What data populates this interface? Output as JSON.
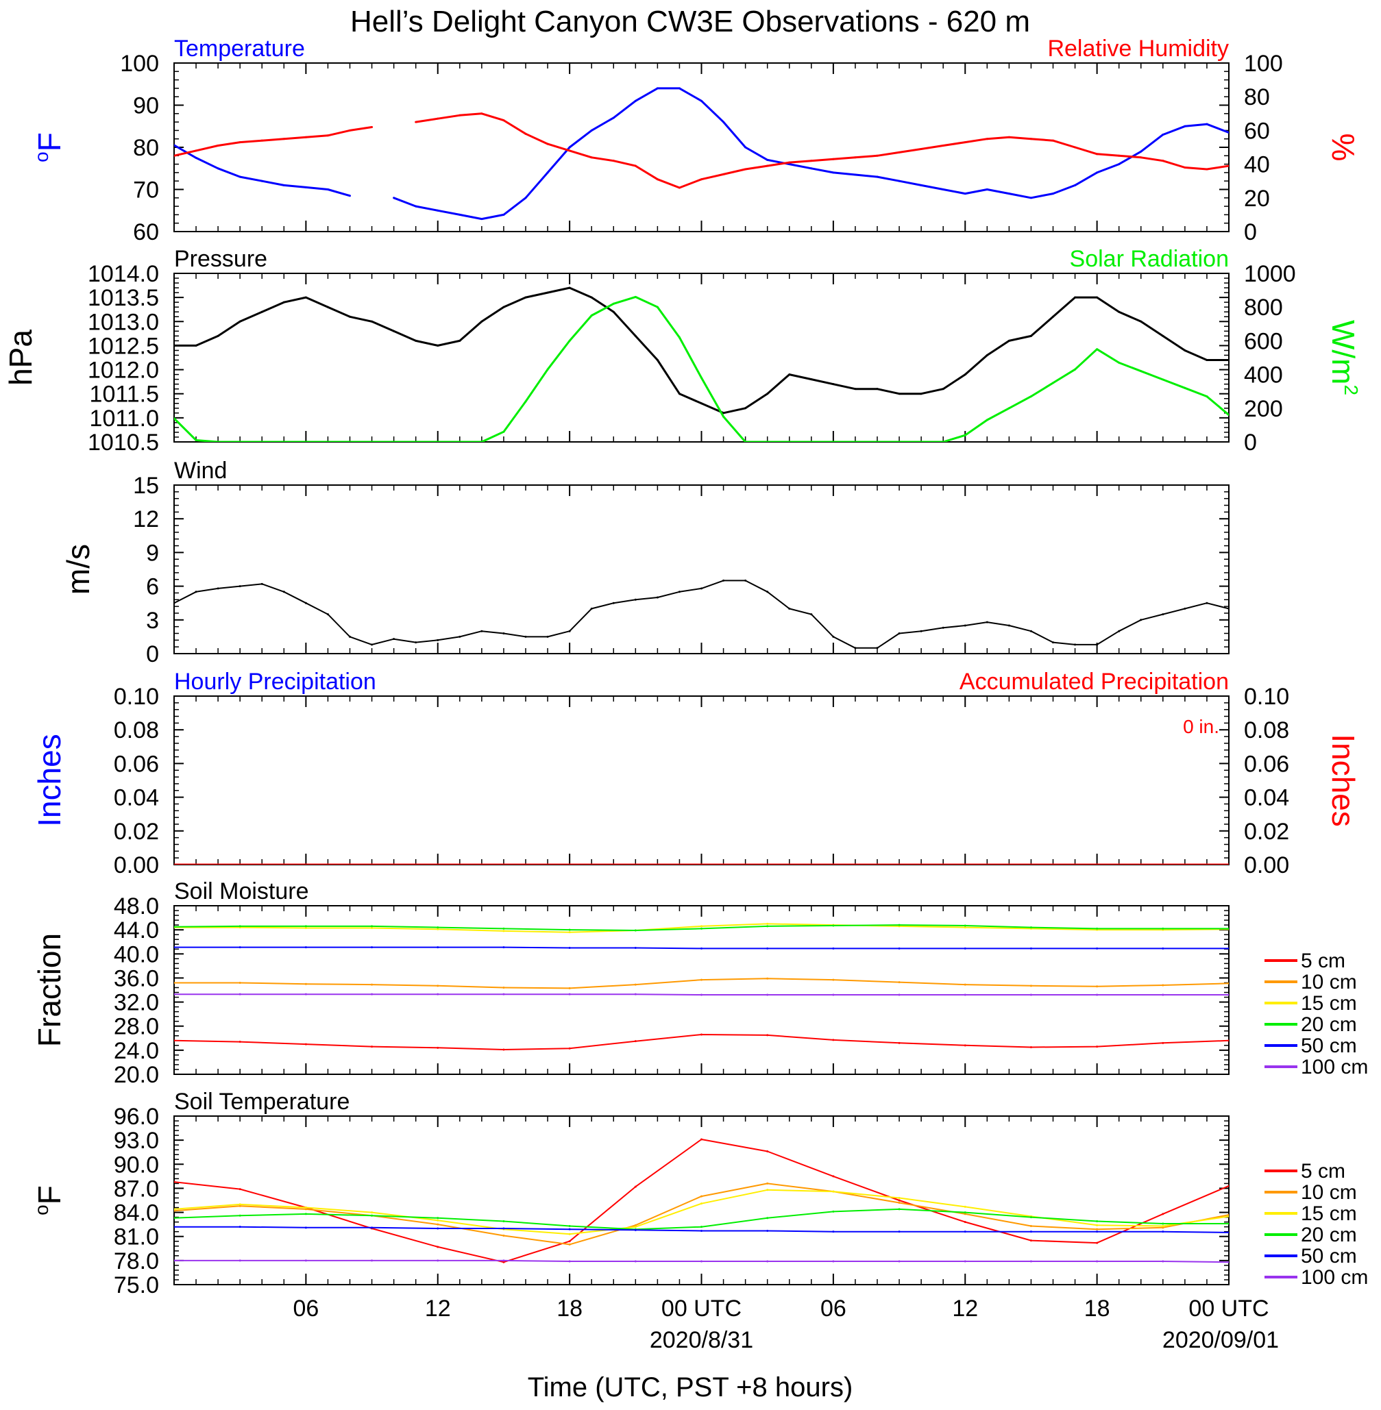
{
  "title": "Hell’s Delight Canyon CW3E Observations - 620 m",
  "xaxis": {
    "label": "Time (UTC, PST +8 hours)",
    "ticks": [
      "06",
      "12",
      "18",
      "00 UTC",
      "06",
      "12",
      "18",
      "00 UTC"
    ],
    "dates": [
      "2020/8/31",
      "2020/09/01"
    ]
  },
  "colors": {
    "blue": "#0000ff",
    "red": "#ff0000",
    "green": "#00ee00",
    "black": "#000000",
    "orange": "#ff9900",
    "yellow": "#ffee00",
    "purple": "#9933ee"
  },
  "chart_data": [
    {
      "type": "line",
      "panel": "temperature_rh",
      "left_title": "Temperature",
      "right_title": "Relative Humidity",
      "ylabel_left_prefix": "o",
      "ylabel_left_main": "F",
      "ylabel_right": "%",
      "ylim_left": [
        60,
        100
      ],
      "yticks_left": [
        "100",
        "90",
        "80",
        "70",
        "60"
      ],
      "ylim_right": [
        0,
        100
      ],
      "yticks_right": [
        "100",
        "80",
        "60",
        "40",
        "20",
        "0"
      ],
      "x_hours": [
        0,
        1,
        2,
        3,
        4,
        5,
        6,
        7,
        8,
        9,
        10,
        11,
        12,
        13,
        14,
        15,
        16,
        17,
        18,
        19,
        20,
        21,
        22,
        23,
        24,
        25,
        26,
        27,
        28,
        29,
        30,
        31,
        32,
        33,
        34,
        35,
        36,
        37,
        38,
        39,
        40,
        41,
        42,
        43,
        44,
        45,
        46,
        47,
        48
      ],
      "series": [
        {
          "name": "Temperature",
          "color": "#0000ff",
          "axis": "left",
          "values": [
            80.5,
            77.5,
            75,
            73,
            72,
            71,
            70.5,
            70,
            68.5,
            null,
            68,
            66,
            65,
            64,
            63,
            64,
            68,
            74,
            80,
            84,
            87,
            91,
            94,
            94,
            91,
            86,
            80,
            77,
            76,
            75,
            74,
            73.5,
            73,
            72,
            71,
            70,
            69,
            70,
            69,
            68,
            69,
            71,
            74,
            76,
            79,
            83,
            85,
            85.5,
            83.5
          ]
        },
        {
          "name": "Relative Humidity",
          "color": "#ff0000",
          "axis": "right",
          "values": [
            45,
            48,
            51,
            53,
            54,
            55,
            56,
            57,
            60,
            62,
            null,
            65,
            67,
            69,
            70,
            66,
            58,
            52,
            48,
            44,
            42,
            39,
            31,
            26,
            31,
            34,
            37,
            39,
            41,
            42,
            43,
            44,
            45,
            47,
            49,
            51,
            53,
            55,
            56,
            55,
            54,
            50,
            46,
            45,
            44,
            42,
            38,
            37,
            39
          ]
        }
      ]
    },
    {
      "type": "line",
      "panel": "pressure_solar",
      "left_title": "Pressure",
      "right_title": "Solar Radiation",
      "ylabel_left": "hPa",
      "ylabel_right_main": "W/m",
      "ylabel_right_sup": "2",
      "ylim_left": [
        1010.5,
        1014.0
      ],
      "yticks_left": [
        "1014.0",
        "1013.5",
        "1013.0",
        "1012.5",
        "1012.0",
        "1011.5",
        "1011.0",
        "1010.5"
      ],
      "ylim_right": [
        0,
        1000
      ],
      "yticks_right": [
        "1000",
        "800",
        "600",
        "400",
        "200",
        "0"
      ],
      "x_hours": [
        0,
        1,
        2,
        3,
        4,
        5,
        6,
        7,
        8,
        9,
        10,
        11,
        12,
        13,
        14,
        15,
        16,
        17,
        18,
        19,
        20,
        21,
        22,
        23,
        24,
        25,
        26,
        27,
        28,
        29,
        30,
        31,
        32,
        33,
        34,
        35,
        36,
        37,
        38,
        39,
        40,
        41,
        42,
        43,
        44,
        45,
        46,
        47,
        48
      ],
      "series": [
        {
          "name": "Pressure",
          "color": "#000000",
          "axis": "left",
          "values": [
            1012.5,
            1012.5,
            1012.7,
            1013.0,
            1013.2,
            1013.4,
            1013.5,
            1013.3,
            1013.1,
            1013.0,
            1012.8,
            1012.6,
            1012.5,
            1012.6,
            1013.0,
            1013.3,
            1013.5,
            1013.6,
            1013.7,
            1013.5,
            1013.2,
            1012.7,
            1012.2,
            1011.5,
            1011.3,
            1011.1,
            1011.2,
            1011.5,
            1011.9,
            1011.8,
            1011.7,
            1011.6,
            1011.6,
            1011.5,
            1011.5,
            1011.6,
            1011.9,
            1012.3,
            1012.6,
            1012.7,
            1013.1,
            1013.5,
            1013.5,
            1013.2,
            1013.0,
            1012.7,
            1012.4,
            1012.2,
            1012.2
          ]
        },
        {
          "name": "Solar Radiation",
          "color": "#00ee00",
          "axis": "right",
          "values": [
            140,
            10,
            0,
            0,
            0,
            0,
            0,
            0,
            0,
            0,
            0,
            0,
            0,
            0,
            0,
            60,
            240,
            430,
            600,
            750,
            820,
            860,
            800,
            620,
            380,
            150,
            0,
            0,
            0,
            0,
            0,
            0,
            0,
            0,
            0,
            0,
            40,
            130,
            200,
            270,
            350,
            430,
            550,
            470,
            420,
            370,
            320,
            270,
            160
          ]
        }
      ]
    },
    {
      "type": "line",
      "panel": "wind",
      "left_title": "Wind",
      "ylabel_left": "m/s",
      "ylim_left": [
        0,
        15
      ],
      "yticks_left": [
        "15",
        "12",
        "9",
        "6",
        "3",
        "0"
      ],
      "x_hours": [
        0,
        1,
        2,
        3,
        4,
        5,
        6,
        7,
        8,
        9,
        10,
        11,
        12,
        13,
        14,
        15,
        16,
        17,
        18,
        19,
        20,
        21,
        22,
        23,
        24,
        25,
        26,
        27,
        28,
        29,
        30,
        31,
        32,
        33,
        34,
        35,
        36,
        37,
        38,
        39,
        40,
        41,
        42,
        43,
        44,
        45,
        46,
        47,
        48
      ],
      "series": [
        {
          "name": "Wind speed",
          "color": "#000000",
          "axis": "left",
          "values": [
            4.5,
            5.5,
            5.8,
            6.0,
            6.2,
            5.5,
            4.5,
            3.5,
            1.5,
            0.8,
            1.3,
            1.0,
            1.2,
            1.5,
            2.0,
            1.8,
            1.5,
            1.5,
            2.0,
            4.0,
            4.5,
            4.8,
            5.0,
            5.5,
            5.8,
            6.5,
            6.5,
            5.5,
            4.0,
            3.5,
            1.5,
            0.5,
            0.5,
            1.8,
            2.0,
            2.3,
            2.5,
            2.8,
            2.5,
            2.0,
            1.0,
            0.8,
            0.8,
            2.0,
            3.0,
            3.5,
            4.0,
            4.5,
            4.0
          ]
        }
      ]
    },
    {
      "type": "line",
      "panel": "precipitation",
      "left_title": "Hourly Precipitation",
      "right_title": "Accumulated Precipitation",
      "annotation": "0 in.",
      "ylabel_left": "Inches",
      "ylabel_right": "Inches",
      "ylim_left": [
        0,
        0.1
      ],
      "yticks_left": [
        "0.10",
        "0.08",
        "0.06",
        "0.04",
        "0.02",
        "0.00"
      ],
      "ylim_right": [
        0,
        0.1
      ],
      "yticks_right": [
        "0.10",
        "0.08",
        "0.06",
        "0.04",
        "0.02",
        "0.00"
      ],
      "x_hours": [
        0,
        48
      ],
      "series": [
        {
          "name": "Hourly Precipitation",
          "color": "#0000ff",
          "axis": "left",
          "values": [
            0,
            0
          ]
        },
        {
          "name": "Accumulated Precipitation",
          "color": "#ff0000",
          "axis": "left",
          "values": [
            0,
            0
          ]
        }
      ]
    },
    {
      "type": "line",
      "panel": "soil_moisture",
      "left_title": "Soil Moisture",
      "ylabel_left": "Fraction",
      "ylim_left": [
        20,
        48
      ],
      "yticks_left": [
        "48.0",
        "44.0",
        "40.0",
        "36.0",
        "32.0",
        "28.0",
        "24.0",
        "20.0"
      ],
      "x_hours": [
        0,
        3,
        6,
        9,
        12,
        15,
        18,
        21,
        24,
        27,
        30,
        33,
        36,
        39,
        42,
        45,
        48
      ],
      "legend": [
        "5 cm",
        "10 cm",
        "15 cm",
        "20 cm",
        "50 cm",
        "100 cm"
      ],
      "series": [
        {
          "name": "5 cm",
          "color": "#ff0000",
          "values": [
            25.6,
            25.4,
            25.0,
            24.6,
            24.4,
            24.1,
            24.3,
            25.5,
            26.6,
            26.5,
            25.7,
            25.2,
            24.8,
            24.5,
            24.6,
            25.2,
            25.6
          ]
        },
        {
          "name": "10 cm",
          "color": "#ff9900",
          "values": [
            35.2,
            35.2,
            35.0,
            34.9,
            34.7,
            34.4,
            34.3,
            34.9,
            35.7,
            35.9,
            35.7,
            35.3,
            34.9,
            34.7,
            34.6,
            34.8,
            35.1
          ]
        },
        {
          "name": "15 cm",
          "color": "#ffee00",
          "values": [
            44.4,
            44.4,
            44.3,
            44.3,
            44.1,
            43.8,
            43.6,
            43.9,
            44.6,
            45.0,
            44.8,
            44.6,
            44.4,
            44.2,
            44.0,
            44.0,
            44.1
          ]
        },
        {
          "name": "20 cm",
          "color": "#00ee00",
          "values": [
            44.5,
            44.6,
            44.6,
            44.6,
            44.4,
            44.2,
            44.0,
            43.9,
            44.2,
            44.6,
            44.7,
            44.8,
            44.7,
            44.4,
            44.2,
            44.2,
            44.2
          ]
        },
        {
          "name": "50 cm",
          "color": "#0000ff",
          "values": [
            41.1,
            41.1,
            41.1,
            41.1,
            41.1,
            41.1,
            41.0,
            41.0,
            40.9,
            40.9,
            40.9,
            40.9,
            40.9,
            40.9,
            40.9,
            40.9,
            40.9
          ]
        },
        {
          "name": "100 cm",
          "color": "#9933ee",
          "values": [
            33.3,
            33.3,
            33.3,
            33.3,
            33.3,
            33.3,
            33.3,
            33.3,
            33.2,
            33.2,
            33.2,
            33.2,
            33.2,
            33.2,
            33.2,
            33.2,
            33.2
          ]
        }
      ]
    },
    {
      "type": "line",
      "panel": "soil_temperature",
      "left_title": "Soil Temperature",
      "ylabel_left_prefix": "o",
      "ylabel_left_main": "F",
      "ylim_left": [
        75,
        96
      ],
      "yticks_left": [
        "96.0",
        "93.0",
        "90.0",
        "87.0",
        "84.0",
        "81.0",
        "78.0",
        "75.0"
      ],
      "x_hours": [
        0,
        3,
        6,
        9,
        12,
        15,
        18,
        21,
        24,
        27,
        30,
        33,
        36,
        39,
        42,
        45,
        48
      ],
      "legend": [
        "5 cm",
        "10 cm",
        "15 cm",
        "20 cm",
        "50 cm",
        "100 cm"
      ],
      "series": [
        {
          "name": "5 cm",
          "color": "#ff0000",
          "values": [
            87.8,
            86.9,
            84.6,
            82.0,
            79.7,
            77.8,
            80.4,
            87.2,
            93.1,
            91.6,
            88.5,
            85.5,
            82.8,
            80.5,
            80.2,
            83.8,
            87.3
          ]
        },
        {
          "name": "10 cm",
          "color": "#ff9900",
          "values": [
            84.2,
            84.8,
            84.4,
            83.6,
            82.5,
            81.1,
            80.0,
            82.4,
            86.0,
            87.6,
            86.6,
            85.2,
            83.8,
            82.3,
            81.9,
            82.1,
            83.7
          ]
        },
        {
          "name": "15 cm",
          "color": "#ffee00",
          "values": [
            84.4,
            85.0,
            84.6,
            84.0,
            83.0,
            81.9,
            81.3,
            82.2,
            85.1,
            86.8,
            86.6,
            85.8,
            84.7,
            83.5,
            82.4,
            82.3,
            83.5
          ]
        },
        {
          "name": "20 cm",
          "color": "#00ee00",
          "values": [
            83.3,
            83.6,
            83.8,
            83.6,
            83.3,
            82.9,
            82.3,
            81.9,
            82.2,
            83.3,
            84.1,
            84.4,
            84.0,
            83.4,
            82.9,
            82.6,
            82.6
          ]
        },
        {
          "name": "50 cm",
          "color": "#0000ff",
          "values": [
            82.2,
            82.2,
            82.1,
            82.1,
            82.0,
            82.0,
            81.9,
            81.8,
            81.7,
            81.7,
            81.6,
            81.6,
            81.6,
            81.6,
            81.6,
            81.6,
            81.5
          ]
        },
        {
          "name": "100 cm",
          "color": "#9933ee",
          "values": [
            78.0,
            78.0,
            78.0,
            78.0,
            78.0,
            78.0,
            77.9,
            77.9,
            77.9,
            77.9,
            77.9,
            77.9,
            77.9,
            77.9,
            77.9,
            77.9,
            77.8
          ]
        }
      ]
    }
  ]
}
